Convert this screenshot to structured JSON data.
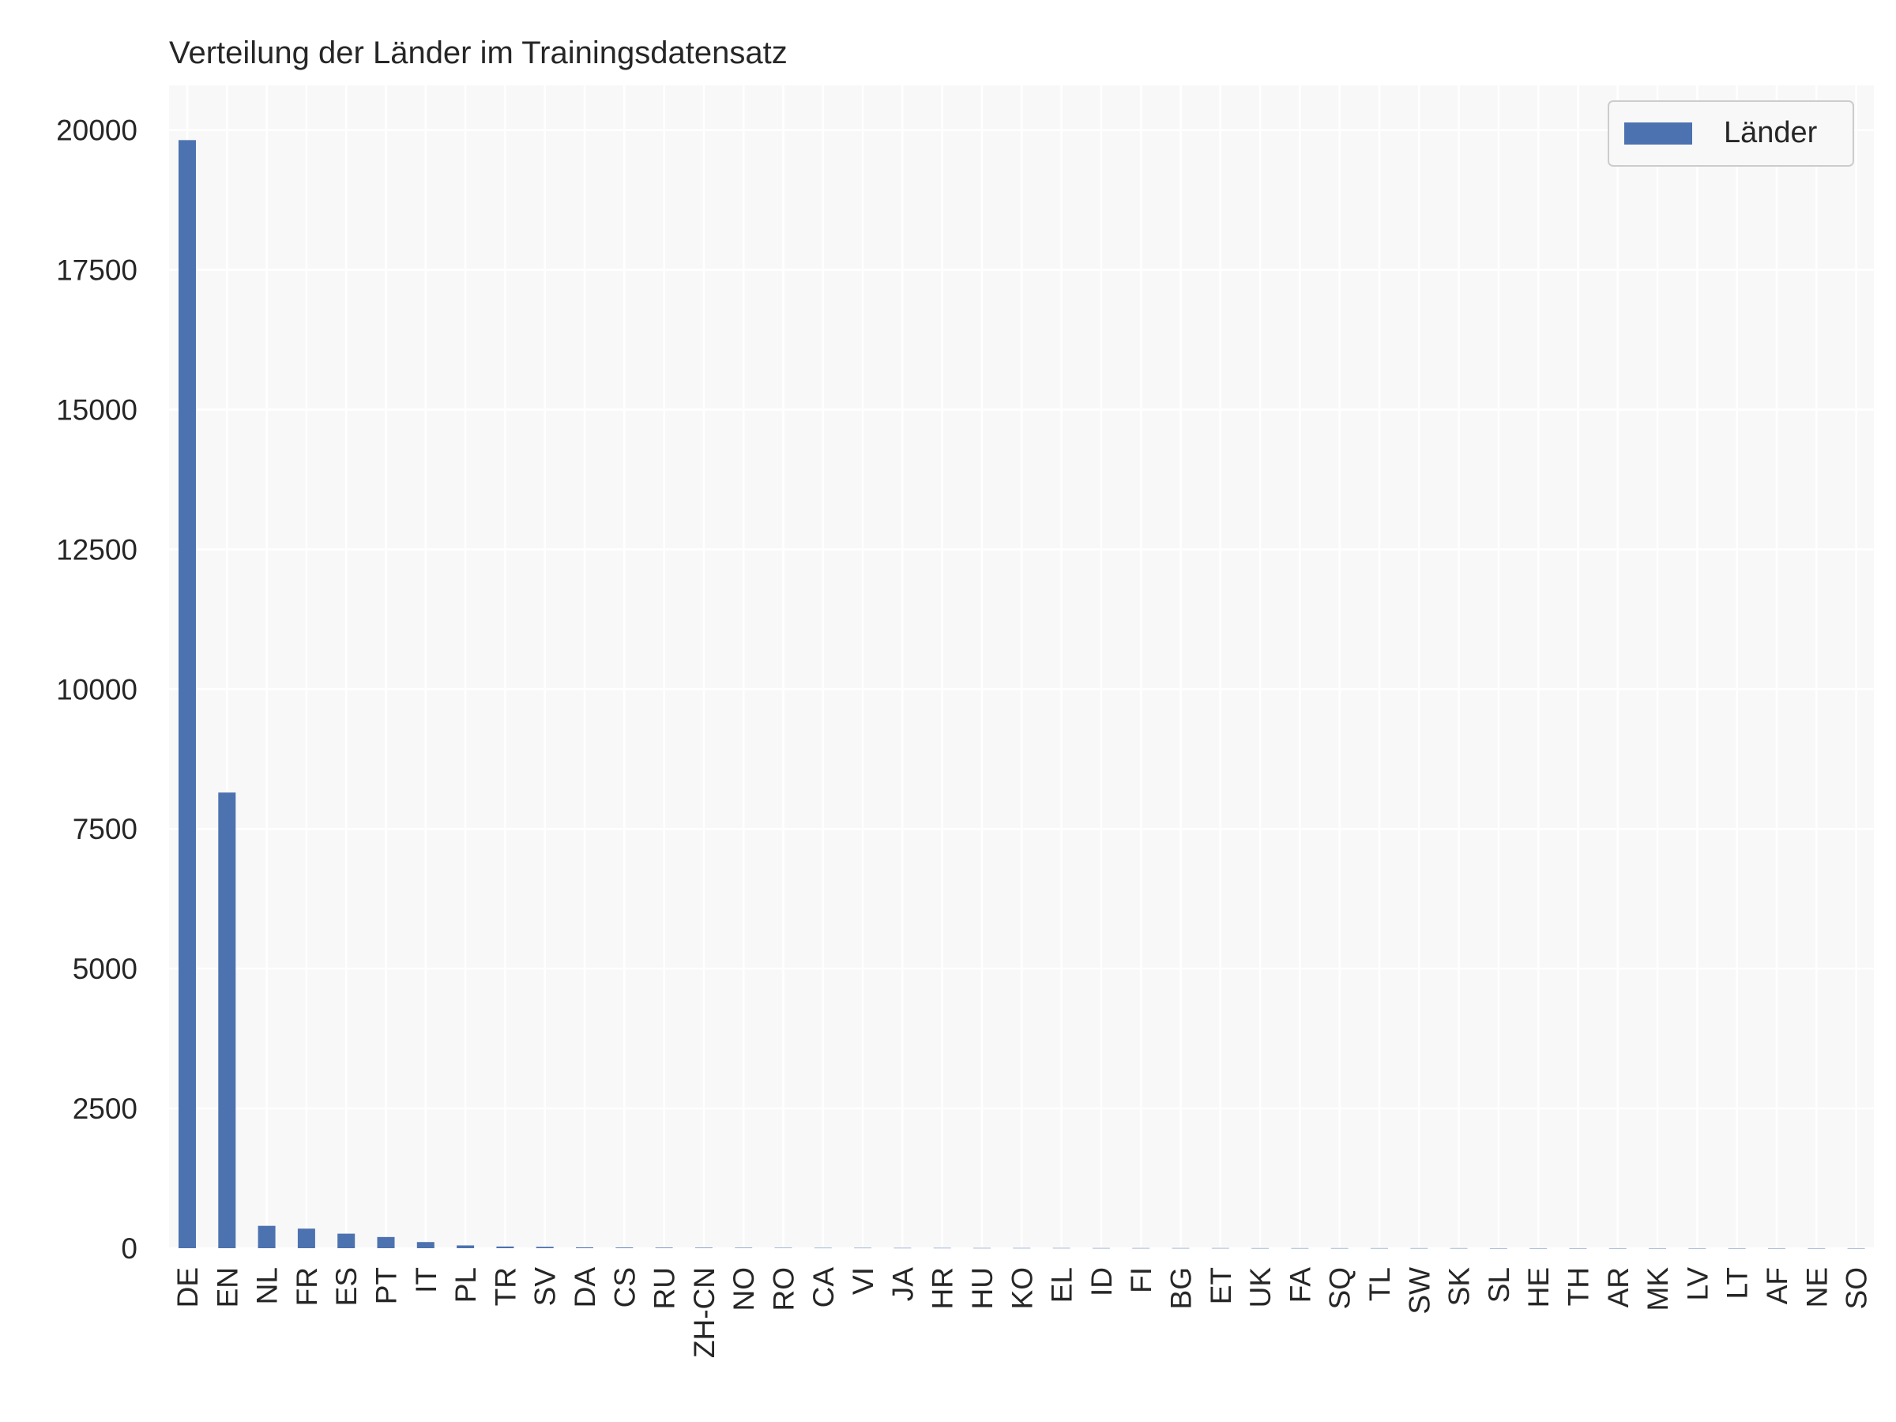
{
  "chart_data": {
    "type": "bar",
    "title": "Verteilung der Länder im Trainingsdatensatz",
    "xlabel": "",
    "ylabel": "",
    "ylim": [
      0,
      20800
    ],
    "yticks": [
      0,
      2500,
      5000,
      7500,
      10000,
      12500,
      15000,
      17500,
      20000
    ],
    "grid": true,
    "legend_position": "top-right",
    "categories": [
      "DE",
      "EN",
      "NL",
      "FR",
      "ES",
      "PT",
      "IT",
      "PL",
      "TR",
      "SV",
      "DA",
      "CS",
      "RU",
      "ZH-CN",
      "NO",
      "RO",
      "CA",
      "VI",
      "JA",
      "HR",
      "HU",
      "KO",
      "EL",
      "ID",
      "FI",
      "BG",
      "ET",
      "UK",
      "FA",
      "SQ",
      "TL",
      "SW",
      "SK",
      "SL",
      "HE",
      "TH",
      "AR",
      "MK",
      "LV",
      "LT",
      "AF",
      "NE",
      "SO"
    ],
    "series": [
      {
        "name": "Länder",
        "color": "#4c72b0",
        "values": [
          19820,
          8150,
          400,
          350,
          260,
          200,
          110,
          50,
          30,
          25,
          15,
          12,
          10,
          9,
          8,
          7,
          6,
          6,
          5,
          5,
          4,
          4,
          4,
          3,
          3,
          3,
          3,
          2,
          2,
          2,
          2,
          2,
          2,
          1,
          1,
          1,
          1,
          1,
          1,
          1,
          1,
          1,
          1
        ]
      }
    ]
  }
}
